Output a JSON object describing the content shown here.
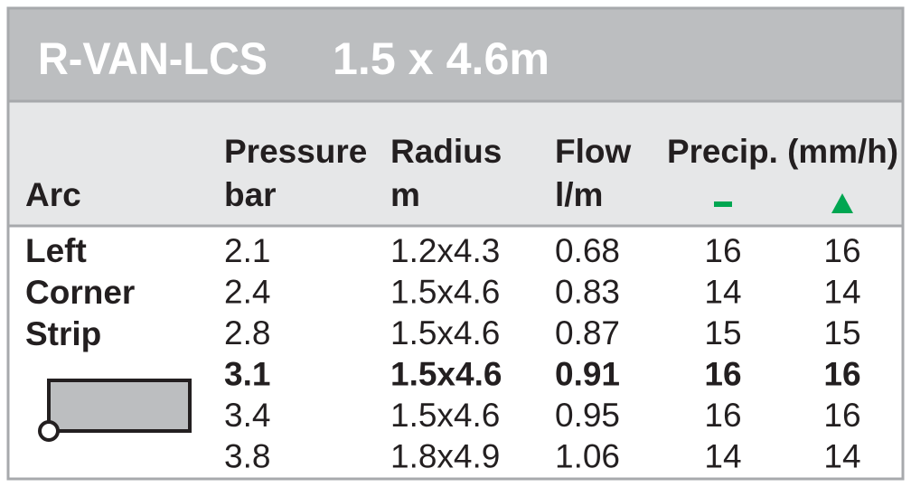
{
  "header": {
    "model": "R-VAN-LCS",
    "size": "1.5 x 4.6m"
  },
  "table": {
    "columns": [
      [
        "Arc"
      ],
      [
        "Pressure",
        "bar"
      ],
      [
        "Radius",
        "m"
      ],
      [
        "Flow",
        "l/m"
      ]
    ],
    "precip_header": "Precip. (mm/h)",
    "arc_labels": [
      "Left",
      "Corner",
      "Strip"
    ],
    "rows": [
      [
        "2.1",
        "1.2x4.3",
        "0.68",
        "16",
        "16"
      ],
      [
        "2.4",
        "1.5x4.6",
        "0.83",
        "14",
        "14"
      ],
      [
        "2.8",
        "1.5x4.6",
        "0.87",
        "15",
        "15"
      ],
      [
        "3.1",
        "1.5x4.6",
        "0.91",
        "16",
        "16"
      ],
      [
        "3.4",
        "1.5x4.6",
        "0.95",
        "16",
        "16"
      ],
      [
        "3.8",
        "1.8x4.9",
        "1.06",
        "14",
        "14"
      ]
    ],
    "bold_row": 3
  }
}
